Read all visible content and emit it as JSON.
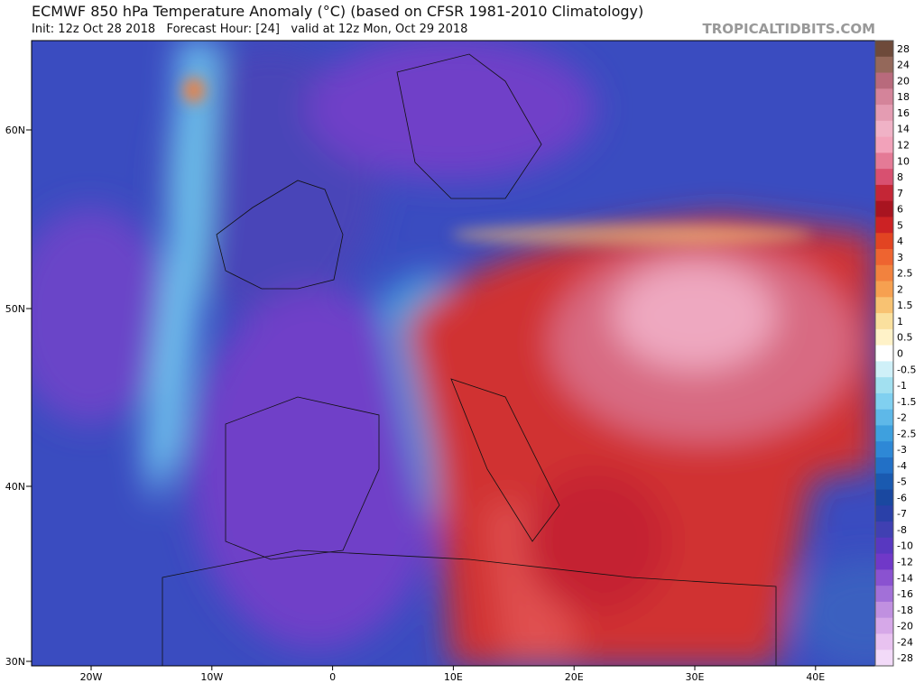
{
  "header": {
    "title": "ECMWF 850 hPa Temperature Anomaly (°C) (based on CFSR 1981-2010 Climatology)",
    "subtitle": "Init: 12z Oct 28 2018   Forecast Hour: [24]   valid at 12z Mon, Oct 29 2018",
    "source": "TROPICALTIDBITS.COM"
  },
  "map": {
    "lat_labels": [
      "60N",
      "50N",
      "40N",
      "30N"
    ],
    "lon_labels": [
      "20W",
      "10W",
      "0",
      "10E",
      "20E",
      "30E",
      "40E"
    ]
  },
  "legend": {
    "labels": [
      "28",
      "24",
      "20",
      "18",
      "16",
      "14",
      "12",
      "10",
      "8",
      "7",
      "6",
      "5",
      "4",
      "3",
      "2.5",
      "2",
      "1.5",
      "1",
      "0.5",
      "0",
      "-0.5",
      "-1",
      "-1.5",
      "-2",
      "-2.5",
      "-3",
      "-4",
      "-5",
      "-6",
      "-7",
      "-8",
      "-10",
      "-12",
      "-14",
      "-16",
      "-18",
      "-20",
      "-24",
      "-28"
    ],
    "colors": [
      "#6e4a3a",
      "#94685a",
      "#b86a7c",
      "#d4849a",
      "#e49cb2",
      "#f0b2c6",
      "#f2a2ba",
      "#e47a96",
      "#d85070",
      "#c42636",
      "#a81420",
      "#cc2224",
      "#e24422",
      "#ee6430",
      "#f2823e",
      "#f6a050",
      "#f8c272",
      "#fae09e",
      "#fff2c8",
      "#ffffff",
      "#cff0f8",
      "#a2e0f0",
      "#80d0f0",
      "#5eb8e8",
      "#3ea0de",
      "#2e88d6",
      "#2270c6",
      "#1a5ab0",
      "#1a48a0",
      "#2a40a8",
      "#4040b2",
      "#5838c0",
      "#7038c8",
      "#8a52d0",
      "#a270d8",
      "#c090e0",
      "#d6a8e8",
      "#e8c2f0",
      "#f2daf8"
    ]
  }
}
